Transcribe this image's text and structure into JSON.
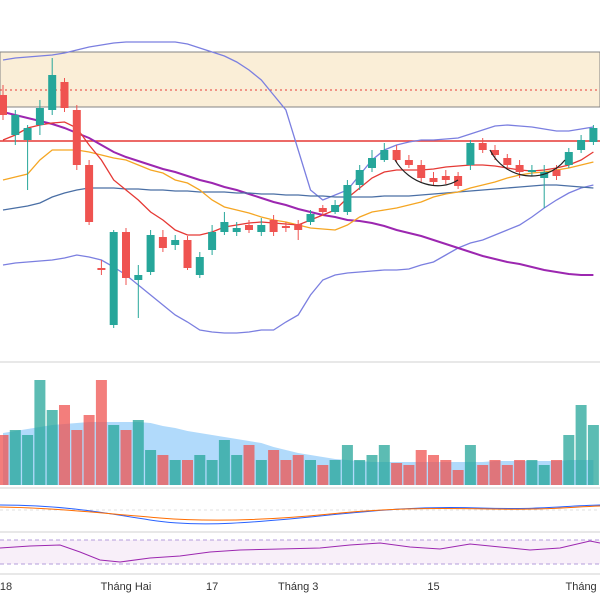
{
  "chart_data": {
    "type": "candlestick",
    "categories": [
      "18",
      null,
      null,
      null,
      null,
      null,
      null,
      null,
      null,
      null,
      "Tháng Hai",
      null,
      null,
      null,
      null,
      null,
      null,
      "17",
      null,
      null,
      null,
      null,
      null,
      null,
      "Tháng 3",
      null,
      null,
      null,
      null,
      null,
      null,
      null,
      null,
      null,
      null,
      "15",
      null,
      null,
      null,
      null,
      null,
      null,
      null,
      null,
      null,
      null,
      null,
      "Tháng",
      null
    ],
    "open": [
      265,
      225,
      220,
      235,
      250,
      278,
      250,
      195,
      92,
      35,
      128,
      80,
      88,
      123,
      115,
      120,
      85,
      110,
      128,
      128,
      135,
      128,
      140,
      134,
      136,
      138,
      152,
      148,
      148,
      175,
      192,
      200,
      210,
      200,
      195,
      182,
      184,
      184,
      195,
      217,
      210,
      202,
      195,
      188,
      182,
      190,
      195,
      210,
      218
    ],
    "high": [
      275,
      250,
      235,
      260,
      302,
      282,
      255,
      200,
      100,
      130,
      132,
      95,
      130,
      130,
      125,
      124,
      108,
      135,
      148,
      138,
      140,
      142,
      145,
      138,
      140,
      150,
      155,
      160,
      180,
      195,
      210,
      217,
      215,
      205,
      200,
      188,
      190,
      188,
      220,
      222,
      215,
      206,
      200,
      195,
      195,
      195,
      212,
      225,
      235
    ],
    "low": [
      240,
      215,
      170,
      225,
      245,
      248,
      190,
      135,
      85,
      32,
      75,
      42,
      85,
      108,
      110,
      90,
      82,
      105,
      125,
      124,
      127,
      124,
      124,
      128,
      120,
      135,
      144,
      146,
      145,
      170,
      188,
      198,
      197,
      192,
      178,
      174,
      176,
      171,
      190,
      207,
      200,
      190,
      182,
      184,
      152,
      180,
      192,
      207,
      215
    ],
    "close": [
      245,
      245,
      232,
      252,
      285,
      252,
      195,
      138,
      90,
      128,
      82,
      85,
      125,
      112,
      120,
      92,
      103,
      128,
      138,
      132,
      130,
      135,
      128,
      132,
      130,
      146,
      148,
      155,
      175,
      190,
      202,
      210,
      200,
      195,
      182,
      178,
      180,
      174,
      217,
      210,
      205,
      195,
      188,
      190,
      188,
      184,
      208,
      220,
      232
    ],
    "ylim": [
      0,
      360
    ],
    "up_color": "#26a69a",
    "down_color": "#ef5350",
    "zones": [
      {
        "from": 253,
        "to": 308,
        "color": "#f7e3bd"
      }
    ],
    "hlines": [
      {
        "value": 219,
        "color": "#e53935",
        "style": "solid"
      },
      {
        "value": 270,
        "color": "#e53935",
        "style": "dotted"
      }
    ],
    "lines": [
      {
        "color": "#7b7fe0",
        "values": [
          300,
          302,
          303,
          304,
          305,
          307,
          310,
          313,
          315,
          317,
          318,
          318,
          318,
          318,
          318,
          316,
          312,
          308,
          304,
          298,
          290,
          280,
          265,
          250,
          210,
          170,
          160,
          165,
          170,
          185,
          200,
          210,
          215,
          218,
          220,
          220,
          221,
          222,
          226,
          230,
          234,
          235,
          234,
          233,
          231,
          229,
          229,
          231,
          233
        ]
      },
      {
        "color": "#7b7fe0",
        "values": [
          95,
          97,
          98,
          99,
          100,
          102,
          105,
          103,
          100,
          93,
          85,
          75,
          65,
          55,
          45,
          38,
          30,
          28,
          27,
          27,
          28,
          30,
          30,
          38,
          45,
          65,
          80,
          85,
          87,
          88,
          89,
          90,
          90,
          91,
          95,
          98,
          105,
          112,
          117,
          120,
          125,
          130,
          135,
          143,
          152,
          160,
          167,
          172,
          175
        ]
      },
      {
        "color": "#9c27b0",
        "values": [
          248,
          245,
          242,
          239,
          236,
          232,
          227,
          222,
          215,
          208,
          203,
          199,
          195,
          191,
          188,
          184,
          180,
          177,
          173,
          170,
          166,
          162,
          158,
          155,
          151,
          148,
          145,
          143,
          140,
          139,
          137,
          134,
          130,
          127,
          124,
          120,
          116,
          112,
          108,
          104,
          101,
          98,
          96,
          93,
          90,
          88,
          86,
          85,
          85
        ]
      },
      {
        "color": "#4a6fa5",
        "values": [
          150,
          152,
          154,
          157,
          163,
          167,
          170,
          172,
          172,
          172,
          171,
          171,
          170,
          170,
          169,
          169,
          168,
          168,
          168,
          167,
          167,
          166,
          166,
          165,
          165,
          164,
          164,
          163,
          163,
          163,
          163,
          164,
          164,
          164,
          165,
          166,
          167,
          168,
          169,
          170,
          171,
          172,
          173,
          174,
          175,
          175,
          174,
          173,
          172
        ]
      },
      {
        "color": "#f5a623",
        "values": [
          180,
          183,
          186,
          200,
          210,
          210,
          210,
          208,
          205,
          202,
          200,
          195,
          190,
          187,
          180,
          177,
          170,
          160,
          153,
          150,
          147,
          143,
          140,
          138,
          135,
          132,
          131,
          130,
          135,
          143,
          148,
          150,
          152,
          155,
          158,
          163,
          166,
          168,
          172,
          175,
          178,
          182,
          185,
          187,
          188,
          190,
          192,
          195,
          198
        ]
      },
      {
        "color": "#e53935",
        "values": [
          220,
          225,
          232,
          235,
          237,
          238,
          232,
          215,
          200,
          180,
          170,
          160,
          148,
          140,
          130,
          125,
          125,
          128,
          133,
          135,
          137,
          138,
          137,
          136,
          135,
          140,
          145,
          150,
          162,
          172,
          182,
          188,
          190,
          190,
          190,
          191,
          193,
          194,
          195,
          195,
          194,
          192,
          190,
          189,
          190,
          192,
          195,
          200,
          208
        ]
      }
    ],
    "volume": {
      "ylim": [
        0,
        110
      ],
      "ma_color": "#90caf9",
      "values": [
        50,
        55,
        50,
        105,
        75,
        80,
        55,
        70,
        105,
        60,
        55,
        65,
        35,
        30,
        25,
        25,
        30,
        25,
        45,
        30,
        40,
        25,
        35,
        25,
        30,
        25,
        20,
        25,
        40,
        25,
        30,
        40,
        22,
        20,
        35,
        30,
        25,
        15,
        40,
        20,
        25,
        20,
        25,
        25,
        20,
        25,
        50,
        80,
        60
      ],
      "ma": [
        52,
        54,
        56,
        58,
        60,
        61,
        62,
        63,
        63,
        63,
        63,
        63,
        62,
        59,
        57,
        54,
        52,
        50,
        48,
        46,
        44,
        42,
        38,
        35,
        32,
        30,
        28,
        26,
        25,
        24,
        23,
        23,
        23,
        23,
        23,
        23,
        23,
        23,
        23,
        23,
        24,
        24,
        24,
        24,
        24,
        24,
        25,
        25,
        25
      ]
    }
  }
}
